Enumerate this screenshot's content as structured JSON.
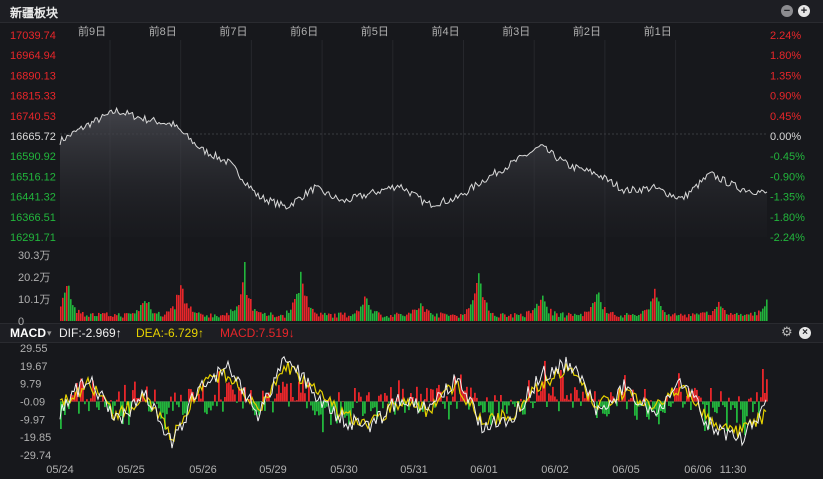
{
  "title": "新疆板块",
  "controls": {
    "minimize_icon": "minus-circle-icon",
    "add_icon": "plus-circle-icon",
    "settings_icon": "gear-icon",
    "close_icon": "close-circle-icon"
  },
  "colors": {
    "up": "#e8262a",
    "down": "#22b53c",
    "neutral": "#d8d8d8",
    "dif": "#f0f0f0",
    "dea": "#e6d200"
  },
  "chart_data": [
    {
      "type": "line",
      "name": "price",
      "day_labels": [
        "前9日",
        "前8日",
        "前7日",
        "前6日",
        "前5日",
        "前4日",
        "前3日",
        "前2日",
        "前1日"
      ],
      "left_ticks": [
        "17039.74",
        "16964.94",
        "16890.13",
        "16815.33",
        "16740.53",
        "16665.72",
        "16590.92",
        "16516.12",
        "16441.32",
        "16366.51",
        "16291.71"
      ],
      "right_ticks": [
        "2.24%",
        "1.80%",
        "1.35%",
        "0.90%",
        "0.45%",
        "0.00%",
        "-0.45%",
        "-0.90%",
        "-1.35%",
        "-1.80%",
        "-2.24%"
      ],
      "ylim": [
        16291.71,
        17039.74
      ],
      "reference": 16665.72,
      "x": [
        0,
        4,
        8,
        12,
        16,
        20,
        24,
        28,
        32,
        36,
        40,
        44,
        48,
        52,
        56,
        60,
        64,
        68,
        72,
        76,
        80,
        84,
        88,
        92,
        96,
        100
      ],
      "values": [
        16640,
        16700,
        16750,
        16720,
        16700,
        16610,
        16560,
        16440,
        16400,
        16470,
        16420,
        16450,
        16480,
        16410,
        16430,
        16500,
        16560,
        16620,
        16550,
        16520,
        16460,
        16470,
        16430,
        16520,
        16470,
        16450
      ]
    },
    {
      "type": "bar",
      "name": "volume",
      "y_ticks": [
        "30.3万",
        "20.2万",
        "10.1万",
        "0"
      ],
      "ylim": [
        0,
        303000
      ],
      "spike_x": [
        1,
        12,
        17,
        26,
        34,
        43,
        51,
        59,
        68,
        76,
        84,
        93,
        100
      ],
      "spike_values": [
        200000,
        110000,
        200000,
        250000,
        280000,
        120000,
        80000,
        280000,
        120000,
        150000,
        150000,
        80000,
        100000
      ]
    },
    {
      "type": "line",
      "name": "MACD",
      "legend": {
        "label": "MACD",
        "dif": "DIF:-2.969↑",
        "dea": "DEA:-6.729↑",
        "macd": "MACD:7.519↓"
      },
      "y_ticks": [
        "29.55",
        "19.67",
        "9.79",
        "-0.09",
        "-9.97",
        "-19.85",
        "-29.74"
      ],
      "ylim": [
        -29.74,
        29.55
      ],
      "x_ticks": [
        "05/24",
        "05/25",
        "05/26",
        "05/29",
        "05/30",
        "05/31",
        "06/01",
        "06/02",
        "06/05",
        "06/06",
        "11:30"
      ],
      "x": [
        0,
        4,
        8,
        12,
        16,
        20,
        24,
        28,
        32,
        36,
        40,
        44,
        48,
        52,
        56,
        60,
        64,
        68,
        72,
        76,
        80,
        84,
        88,
        92,
        96,
        100
      ],
      "dif": [
        -5,
        14,
        -12,
        6,
        -24,
        12,
        18,
        -8,
        24,
        5,
        -10,
        -14,
        2,
        -6,
        12,
        -15,
        -8,
        14,
        22,
        -5,
        8,
        -6,
        12,
        -14,
        -22,
        -3
      ],
      "dea": [
        -3,
        10,
        -9,
        4,
        -20,
        10,
        15,
        -6,
        20,
        6,
        -8,
        -12,
        0,
        -5,
        10,
        -12,
        -7,
        10,
        18,
        -3,
        6,
        -5,
        9,
        -11,
        -18,
        -7
      ]
    }
  ]
}
